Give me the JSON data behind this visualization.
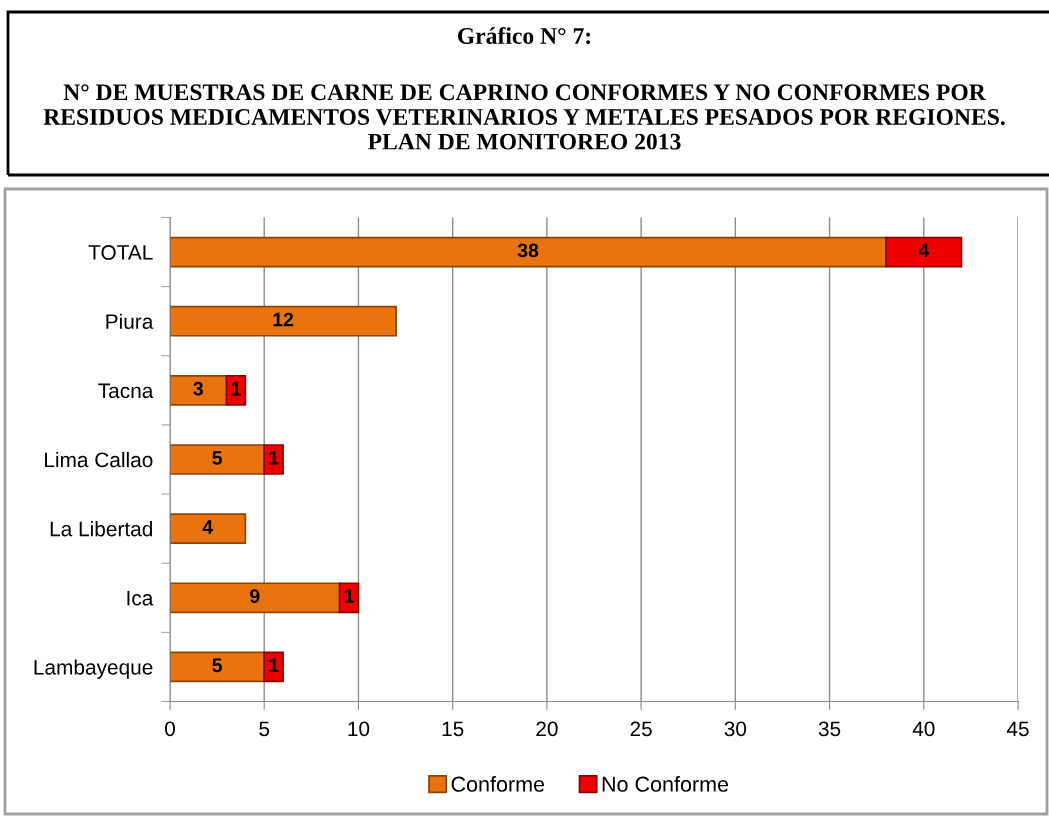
{
  "chart_data": {
    "type": "bar",
    "orientation": "horizontal",
    "stacked": true,
    "title": "Gráfico N° 7:",
    "subtitle": "N° DE MUESTRAS DE CARNE DE CAPRINO CONFORMES Y NO CONFORMES POR\nRESIDUOS MEDICAMENTOS VETERINARIOS Y METALES PESADOS POR REGIONES.\nPLAN DE MONITOREO 2013",
    "categories": [
      "TOTAL",
      "Piura",
      "Tacna",
      "Lima Callao",
      "La Libertad",
      "Ica",
      "Lambayeque"
    ],
    "series": [
      {
        "name": "Conforme",
        "color": "#e8730f",
        "values": [
          38,
          12,
          3,
          5,
          4,
          9,
          5
        ]
      },
      {
        "name": "No Conforme",
        "color": "#ee0000",
        "values": [
          4,
          null,
          1,
          1,
          null,
          1,
          1
        ]
      }
    ],
    "xlim": [
      0,
      45
    ],
    "xticks": [
      0,
      5,
      10,
      15,
      20,
      25,
      30,
      35,
      40,
      45
    ],
    "grid": "x",
    "legend": "bottom",
    "data_labels": true
  }
}
